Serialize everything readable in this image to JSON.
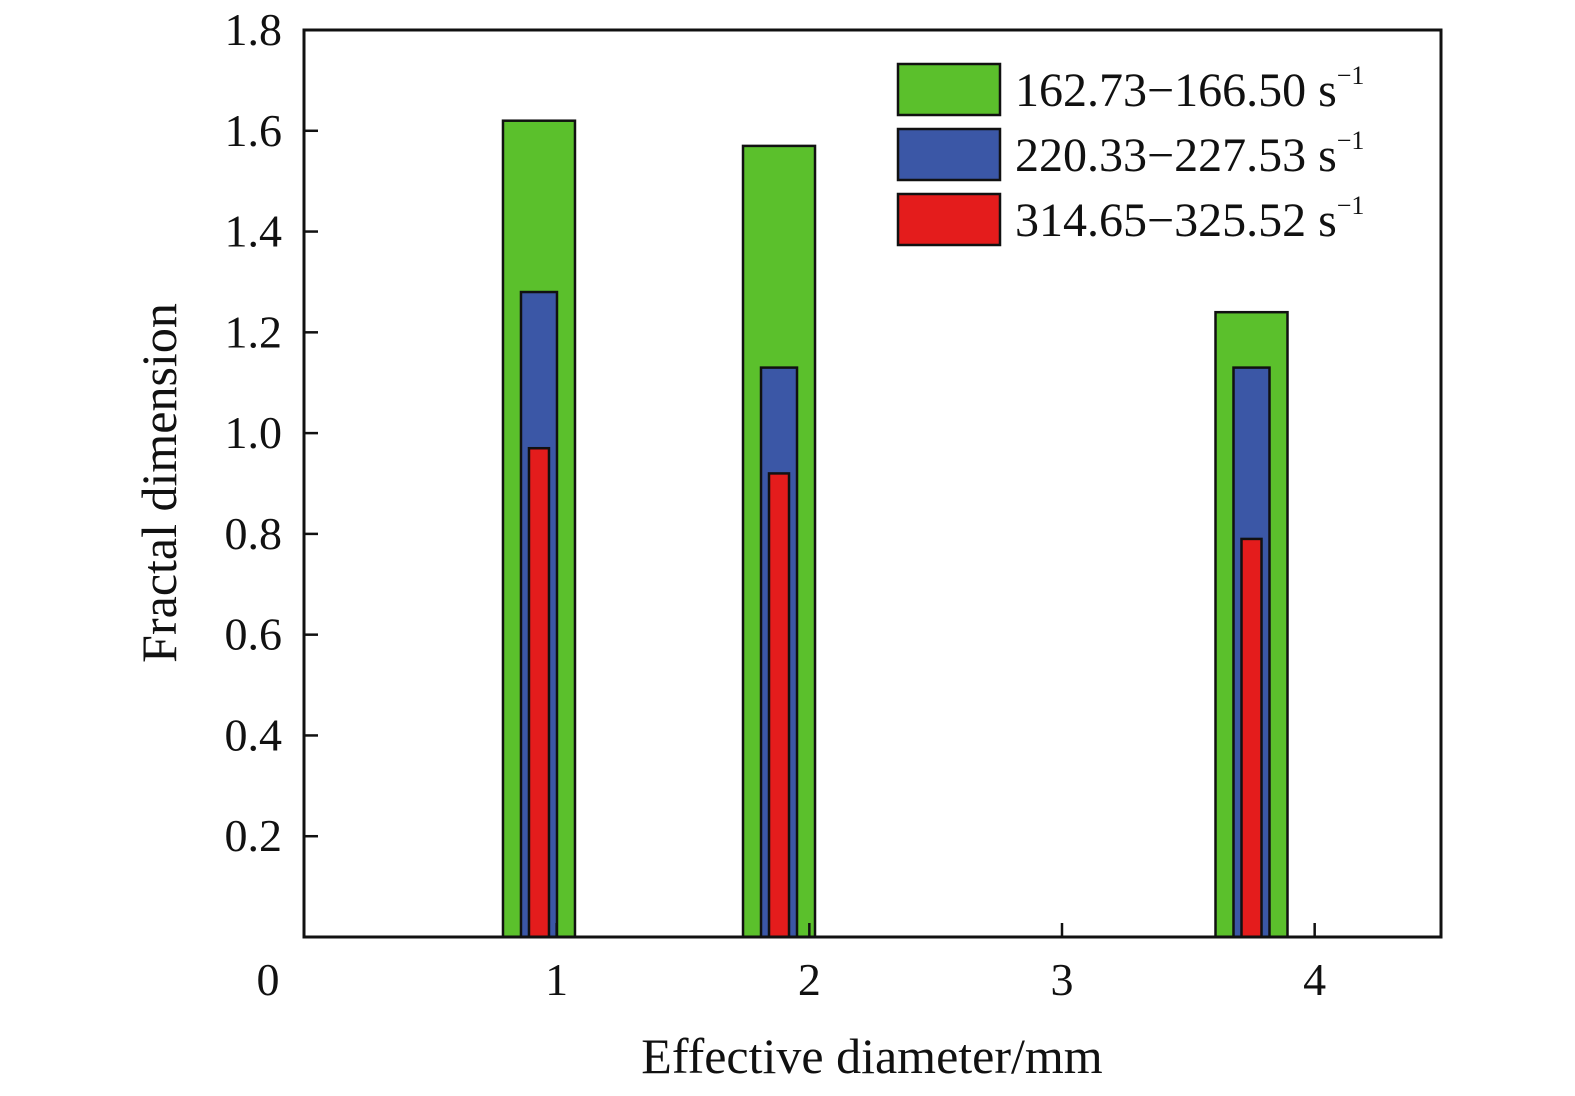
{
  "chart_data": {
    "type": "bar",
    "xlabel": "Effective diameter/mm",
    "ylabel": "Fractal dimension",
    "xlim": [
      0,
      4.5
    ],
    "ylim": [
      0,
      1.8
    ],
    "x_ticks": [
      "0",
      "1",
      "2",
      "3",
      "4"
    ],
    "y_ticks": [
      "0.2",
      "0.4",
      "0.6",
      "0.8",
      "1.0",
      "1.2",
      "1.4",
      "1.6",
      "1.8"
    ],
    "x": [
      0.93,
      1.88,
      3.75
    ],
    "grid": false,
    "legend_position": "top-right",
    "series": [
      {
        "name": "162.73−166.50 s",
        "name_superscript": "−1",
        "color": "#5bc02c",
        "values": [
          1.62,
          1.57,
          1.24
        ]
      },
      {
        "name": "220.33−227.53 s",
        "name_superscript": "−1",
        "color": "#3b57a6",
        "values": [
          1.28,
          1.13,
          1.13
        ]
      },
      {
        "name": "314.65−325.52 s",
        "name_superscript": "−1",
        "color": "#e41c1c",
        "values": [
          0.97,
          0.92,
          0.79
        ]
      }
    ]
  }
}
